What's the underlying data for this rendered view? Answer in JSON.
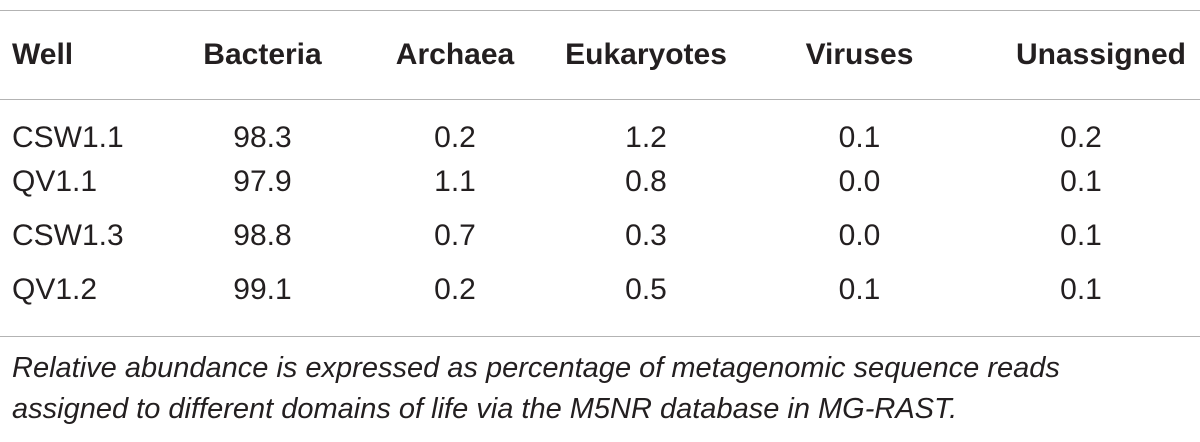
{
  "table": {
    "columns": [
      "Well",
      "Bacteria",
      "Archaea",
      "Eukaryotes",
      "Viruses",
      "Unassigned"
    ],
    "rows": [
      {
        "well": "CSW1.1",
        "bacteria": "98.3",
        "archaea": "0.2",
        "eukaryotes": "1.2",
        "viruses": "0.1",
        "unassigned": "0.2"
      },
      {
        "well": "QV1.1",
        "bacteria": "97.9",
        "archaea": "1.1",
        "eukaryotes": "0.8",
        "viruses": "0.0",
        "unassigned": "0.1"
      },
      {
        "well": "CSW1.3",
        "bacteria": "98.8",
        "archaea": "0.7",
        "eukaryotes": "0.3",
        "viruses": "0.0",
        "unassigned": "0.1"
      },
      {
        "well": "QV1.2",
        "bacteria": "99.1",
        "archaea": "0.2",
        "eukaryotes": "0.5",
        "viruses": "0.1",
        "unassigned": "0.1"
      }
    ]
  },
  "footnote": {
    "line1": "Relative abundance is expressed as percentage of metagenomic sequence reads",
    "line2": "assigned to different domains of life via the M5NR database in MG-RAST."
  }
}
